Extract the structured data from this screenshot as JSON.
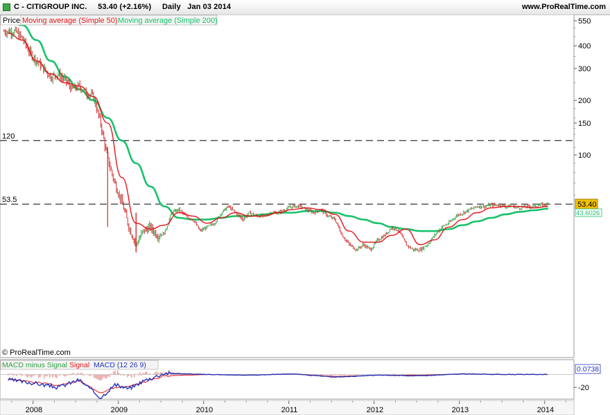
{
  "header": {
    "symbol_title": "C - CITIGROUP INC.",
    "quote": "53.40 (+2.16%)",
    "period": "Daily",
    "date": "Jan 03 2014",
    "site": "www.ProRealTime.com"
  },
  "legend": {
    "price": "Price",
    "ma50": "Moving average (Simple 50)",
    "ma200": "Moving average (Simple 200)"
  },
  "copyright": "© ProRealTime.com",
  "macd_legend": {
    "hist": "MACD minus Signal",
    "signal": "Signal",
    "macd": "MACD (12 26 9)"
  },
  "chart_data": [
    {
      "type": "line",
      "title": "",
      "xlabel": "",
      "ylabel": "",
      "y_scale": "log",
      "ylim": [
        28,
        580
      ],
      "xlim": [
        "2007-08",
        "2014-04"
      ],
      "y_ticks": [
        550,
        400,
        300,
        200,
        150,
        100
      ],
      "x_ticks": [
        "2008",
        "2009",
        "2010",
        "2011",
        "2012",
        "2013",
        "2014"
      ],
      "last_price": "53.40",
      "ma_value_label": "43.6026",
      "reference_lines": [
        {
          "label": "120",
          "value": 120
        },
        {
          "label": "53.5",
          "value": 53.5
        }
      ],
      "colors": {
        "price_up": "#2ea043",
        "price_down": "#d62728",
        "ma50": "#e3151a",
        "ma200": "#17c26a"
      },
      "series": [
        {
          "name": "Price",
          "x": [
            "2007-09",
            "2007-10",
            "2007-11",
            "2007-12",
            "2008-01",
            "2008-02",
            "2008-03",
            "2008-04",
            "2008-05",
            "2008-06",
            "2008-07",
            "2008-08",
            "2008-09",
            "2008-10",
            "2008-11",
            "2008-12",
            "2009-01",
            "2009-02",
            "2009-03",
            "2009-04",
            "2009-05",
            "2009-06",
            "2009-07",
            "2009-08",
            "2009-09",
            "2009-10",
            "2009-11",
            "2009-12",
            "2010-01",
            "2010-02",
            "2010-03",
            "2010-04",
            "2010-05",
            "2010-06",
            "2010-07",
            "2010-08",
            "2010-09",
            "2010-10",
            "2010-11",
            "2010-12",
            "2011-01",
            "2011-02",
            "2011-03",
            "2011-04",
            "2011-05",
            "2011-06",
            "2011-07",
            "2011-08",
            "2011-09",
            "2011-10",
            "2011-11",
            "2011-12",
            "2012-01",
            "2012-02",
            "2012-03",
            "2012-04",
            "2012-05",
            "2012-06",
            "2012-07",
            "2012-08",
            "2012-09",
            "2012-10",
            "2012-11",
            "2012-12",
            "2013-01",
            "2013-02",
            "2013-03",
            "2013-04",
            "2013-05",
            "2013-06",
            "2013-07",
            "2013-08",
            "2013-09",
            "2013-10",
            "2013-11",
            "2013-12",
            "2014-01"
          ],
          "values": [
            480,
            480,
            440,
            370,
            330,
            300,
            270,
            280,
            260,
            230,
            240,
            220,
            210,
            150,
            95,
            70,
            55,
            40,
            32,
            38,
            40,
            36,
            37,
            48,
            50,
            46,
            44,
            38,
            40,
            42,
            48,
            52,
            48,
            44,
            48,
            46,
            46,
            48,
            48,
            50,
            52,
            52,
            50,
            48,
            50,
            46,
            44,
            36,
            32,
            30,
            32,
            30,
            34,
            36,
            40,
            38,
            32,
            30,
            30,
            32,
            36,
            40,
            42,
            46,
            48,
            50,
            52,
            52,
            53,
            53,
            52,
            52,
            51,
            52,
            52,
            53,
            53.4
          ]
        },
        {
          "name": "Moving average (Simple 50)",
          "x": [
            "2007-09",
            "2007-11",
            "2008-01",
            "2008-03",
            "2008-05",
            "2008-07",
            "2008-09",
            "2008-11",
            "2009-01",
            "2009-03",
            "2009-05",
            "2009-07",
            "2009-09",
            "2009-11",
            "2010-01",
            "2010-03",
            "2010-05",
            "2010-07",
            "2010-09",
            "2010-11",
            "2011-01",
            "2011-03",
            "2011-05",
            "2011-07",
            "2011-09",
            "2011-11",
            "2012-01",
            "2012-03",
            "2012-05",
            "2012-07",
            "2012-09",
            "2012-11",
            "2013-01",
            "2013-03",
            "2013-05",
            "2013-07",
            "2013-09",
            "2013-11",
            "2014-01"
          ],
          "values": [
            470,
            430,
            330,
            280,
            250,
            240,
            210,
            150,
            75,
            42,
            39,
            41,
            48,
            46,
            42,
            45,
            48,
            46,
            46,
            48,
            50,
            51,
            50,
            47,
            38,
            33,
            33,
            36,
            39,
            32,
            34,
            40,
            44,
            48,
            51,
            52,
            52,
            51,
            52
          ]
        },
        {
          "name": "Moving average (Simple 200)",
          "x": [
            "2007-09",
            "2007-11",
            "2008-01",
            "2008-03",
            "2008-05",
            "2008-07",
            "2008-09",
            "2008-11",
            "2009-01",
            "2009-03",
            "2009-05",
            "2009-07",
            "2009-09",
            "2009-11",
            "2010-01",
            "2010-03",
            "2010-05",
            "2010-07",
            "2010-09",
            "2010-11",
            "2011-01",
            "2011-03",
            "2011-05",
            "2011-07",
            "2011-09",
            "2011-11",
            "2012-01",
            "2012-03",
            "2012-05",
            "2012-07",
            "2012-09",
            "2012-11",
            "2013-01",
            "2013-03",
            "2013-05",
            "2013-07",
            "2013-09",
            "2013-11",
            "2014-01"
          ],
          "values": [
            550,
            520,
            430,
            330,
            270,
            230,
            200,
            160,
            120,
            90,
            67,
            52,
            45,
            44,
            44,
            45,
            46,
            46,
            47,
            48,
            48,
            49,
            49,
            48,
            46,
            44,
            42,
            40,
            39,
            38,
            38,
            39,
            41,
            43,
            45,
            47,
            48.5,
            49.5,
            50.5
          ]
        }
      ]
    },
    {
      "type": "line",
      "title": "",
      "ylabel": "",
      "ylim": [
        -38,
        8
      ],
      "y_ticks": [
        -20
      ],
      "last_value": "0.0738",
      "colors": {
        "histogram": "#e8a0a0",
        "signal": "#e3151a",
        "macd": "#2233bb"
      },
      "series": [
        {
          "name": "MACD (12 26 9)",
          "x": [
            "2007-09",
            "2008-01",
            "2008-04",
            "2008-07",
            "2008-10",
            "2008-12",
            "2009-02",
            "2009-04",
            "2009-07",
            "2010-01",
            "2010-07",
            "2011-01",
            "2011-07",
            "2012-01",
            "2012-07",
            "2013-01",
            "2013-07",
            "2014-01"
          ],
          "values": [
            -8,
            -14,
            -20,
            -8,
            -36,
            -16,
            -22,
            -10,
            2,
            0,
            -1,
            1,
            -4,
            -1,
            -2,
            1,
            0,
            0.07
          ]
        },
        {
          "name": "Signal",
          "x": [
            "2007-09",
            "2008-01",
            "2008-04",
            "2008-07",
            "2008-10",
            "2008-12",
            "2009-02",
            "2009-04",
            "2009-07",
            "2010-01",
            "2010-07",
            "2011-01",
            "2011-07",
            "2012-01",
            "2012-07",
            "2013-01",
            "2013-07",
            "2014-01"
          ],
          "values": [
            -7,
            -12,
            -17,
            -10,
            -28,
            -20,
            -19,
            -12,
            -2,
            0,
            -1,
            1,
            -3,
            -1,
            -1,
            1,
            0,
            0
          ]
        }
      ]
    }
  ]
}
